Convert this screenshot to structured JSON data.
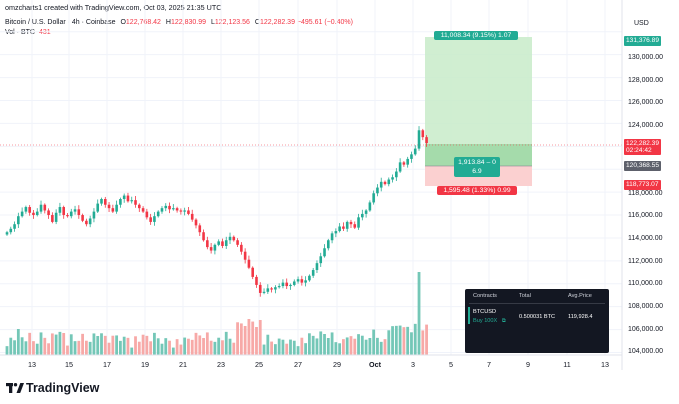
{
  "header": {
    "credit": "omzcharts1 created with TradingView.com, Oct 03, 2025 21:35 UTC",
    "symbol": "Bitcoin / U.S. Dollar · 4h · Coinbase",
    "open_label": "O",
    "open": "122,768.42",
    "high_label": "H",
    "high": "122,830.99",
    "low_label": "L",
    "low": "122,123.56",
    "close_label": "C",
    "close": "122,282.39",
    "change": "−495.61 (−0.40%)",
    "volume_label": "Vol · BTC",
    "volume": "431"
  },
  "price_axis": {
    "currency": "USD",
    "labels": [
      "130,000.00",
      "128,000.00",
      "126,000.00",
      "124,000.00",
      "118,000.00",
      "116,000.00",
      "114,000.00",
      "112,000.00",
      "110,000.00",
      "108,000.00",
      "106,000.00",
      "104,000.00"
    ],
    "tags": {
      "target": "131,376.89",
      "current": "122,282.39",
      "countdown": "02:24:42",
      "entry": "120,368.55",
      "stop": "118,773.07"
    }
  },
  "time_axis": {
    "labels": [
      "13",
      "15",
      "17",
      "19",
      "21",
      "23",
      "25",
      "27",
      "29",
      "Oct",
      "3",
      "5",
      "7",
      "9",
      "11",
      "13"
    ]
  },
  "position_tool": {
    "target_label": "11,008.34 (9.15%) 1.07",
    "center_line1": "1,913.84 – 0",
    "center_line2": "6.9",
    "stop_label": "1,595.48 (1.33%) 0.99"
  },
  "trade_table": {
    "headers": [
      "Contracts",
      "Total",
      "Avg.Price"
    ],
    "symbol": "BTCUSD",
    "order": "Buy 100X",
    "total": "0.500031 BTC",
    "avg_price": "119,928.4"
  },
  "brand": {
    "name": "TradingView"
  },
  "colors": {
    "up": "#22ab94",
    "down": "#f23645",
    "vol_up": "#74c7b7",
    "vol_down": "#f7a9a7",
    "text": "#131722"
  },
  "chart_data": {
    "type": "candlestick",
    "series_close": [
      114500,
      114800,
      115200,
      115900,
      116300,
      116700,
      116200,
      116000,
      116300,
      116900,
      116400,
      116000,
      115400,
      116200,
      116700,
      116000,
      115900,
      116300,
      116500,
      116000,
      115500,
      115200,
      115700,
      116300,
      117000,
      117400,
      116900,
      116600,
      116300,
      116900,
      117400,
      117700,
      117200,
      117300,
      116900,
      116600,
      116300,
      115800,
      115400,
      115900,
      116300,
      116600,
      116800,
      116500,
      116600,
      116400,
      116300,
      116400,
      116100,
      115600,
      115100,
      114500,
      113800,
      113200,
      112900,
      113400,
      113700,
      113300,
      113800,
      114100,
      113800,
      113400,
      112800,
      112100,
      111400,
      110600,
      109900,
      109200,
      109300,
      109600,
      109500,
      109700,
      109800,
      110100,
      109800,
      109900,
      110200,
      110400,
      110100,
      110300,
      110700,
      111200,
      111800,
      112400,
      113100,
      113800,
      114400,
      114600,
      115000,
      114800,
      115400,
      115200,
      114900,
      115800,
      116100,
      116400,
      117100,
      117900,
      118400,
      118900,
      118700,
      119100,
      119300,
      119800,
      120600,
      120400,
      120900,
      121300,
      121800,
      123400,
      122800,
      122282
    ]
  }
}
